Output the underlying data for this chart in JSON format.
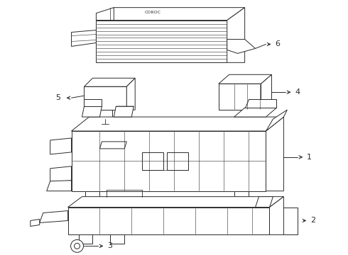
{
  "bg_color": "#ffffff",
  "line_color": "#2a2a2a",
  "label_color": "#000000",
  "figsize": [
    4.9,
    3.6
  ],
  "dpi": 100
}
